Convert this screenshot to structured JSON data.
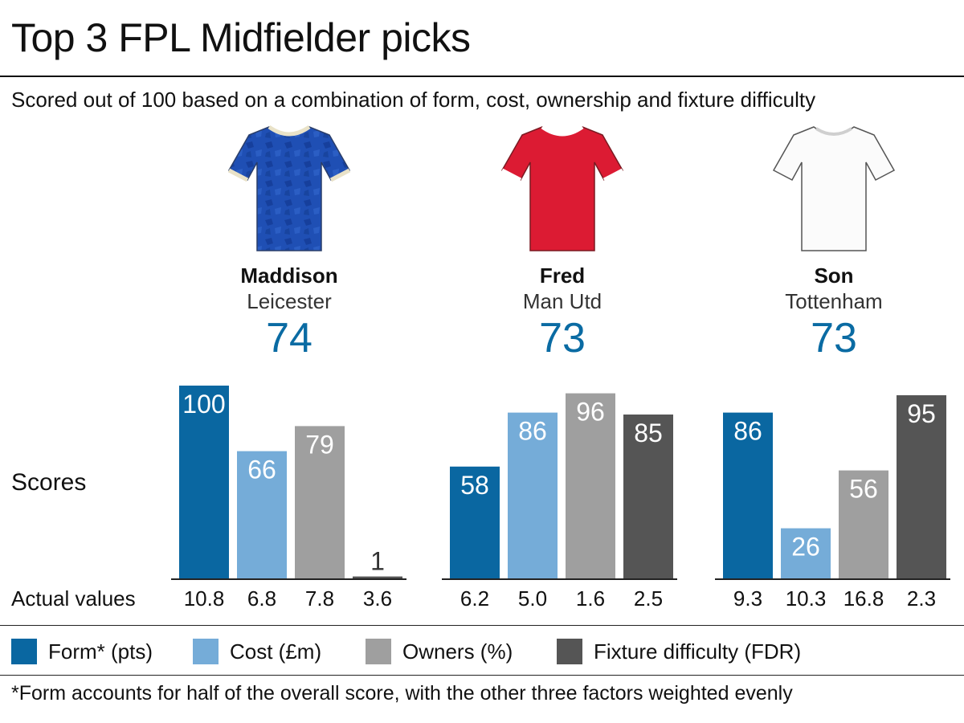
{
  "title": "Top 3 FPL Midfielder picks",
  "subtitle": "Scored out of 100 based on a combination of form, cost, ownership and fixture difficulty",
  "scores_label": "Scores",
  "actual_label": "Actual values",
  "footnote": "*Form accounts for half of the overall score, with the other three factors weighted evenly",
  "colors": {
    "form": "#0a67a1",
    "cost": "#75acd8",
    "owners": "#9f9f9f",
    "fixture": "#555555",
    "score_text": "#0a6ba3"
  },
  "players": [
    {
      "name": "Maddison",
      "club": "Leicester",
      "score": "74",
      "shirt": "blue-shirt-icon"
    },
    {
      "name": "Fred",
      "club": "Man Utd",
      "score": "73",
      "shirt": "red-shirt-icon"
    },
    {
      "name": "Son",
      "club": "Tottenham",
      "score": "73",
      "shirt": "white-shirt-icon"
    }
  ],
  "legend": [
    {
      "label": "Form* (pts)",
      "color": "#0a67a1"
    },
    {
      "label": "Cost (£m)",
      "color": "#75acd8"
    },
    {
      "label": "Owners (%)",
      "color": "#9f9f9f"
    },
    {
      "label": "Fixture difficulty (FDR)",
      "color": "#555555"
    }
  ],
  "chart_data": {
    "type": "bar",
    "ylim": [
      0,
      100
    ],
    "categories": [
      "Form* (pts)",
      "Cost (£m)",
      "Owners (%)",
      "Fixture difficulty (FDR)"
    ],
    "groups": [
      {
        "player": "Maddison",
        "scores": [
          100,
          66,
          79,
          1
        ],
        "actual": [
          "10.8",
          "6.8",
          "7.8",
          "3.6"
        ]
      },
      {
        "player": "Fred",
        "scores": [
          58,
          86,
          96,
          85
        ],
        "actual": [
          "6.2",
          "5.0",
          "1.6",
          "2.5"
        ]
      },
      {
        "player": "Son",
        "scores": [
          86,
          26,
          56,
          95
        ],
        "actual": [
          "9.3",
          "10.3",
          "16.8",
          "2.3"
        ]
      }
    ]
  }
}
